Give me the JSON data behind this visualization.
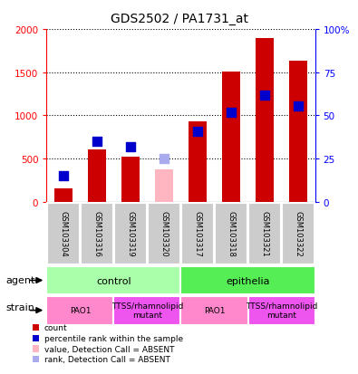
{
  "title": "GDS2502 / PA1731_at",
  "samples": [
    "GSM103304",
    "GSM103316",
    "GSM103319",
    "GSM103320",
    "GSM103317",
    "GSM103318",
    "GSM103321",
    "GSM103322"
  ],
  "count_values": [
    150,
    600,
    520,
    null,
    930,
    1510,
    1900,
    1630
  ],
  "count_absent": [
    null,
    null,
    null,
    370,
    null,
    null,
    null,
    null
  ],
  "percentile_values": [
    300,
    700,
    640,
    null,
    810,
    1030,
    1230,
    1110
  ],
  "percentile_absent": [
    null,
    null,
    null,
    500,
    null,
    null,
    null,
    null
  ],
  "ylim_left": [
    0,
    2000
  ],
  "ylim_right": [
    0,
    100
  ],
  "left_ticks": [
    0,
    500,
    1000,
    1500,
    2000
  ],
  "right_ticks": [
    0,
    25,
    50,
    75,
    100
  ],
  "left_tick_labels": [
    "0",
    "500",
    "1000",
    "1500",
    "2000"
  ],
  "right_tick_labels": [
    "0",
    "25",
    "50",
    "75",
    "100%"
  ],
  "bar_color_red": "#CC0000",
  "bar_color_pink": "#FFB6C1",
  "percentile_color_blue": "#0000CC",
  "percentile_color_lightblue": "#AAAAEE",
  "bar_width": 0.55,
  "dot_size": 50,
  "agent_groups": [
    {
      "label": "control",
      "start": 0,
      "end": 4
    },
    {
      "label": "epithelia",
      "start": 4,
      "end": 8
    }
  ],
  "strain_groups": [
    {
      "label": "PAO1",
      "start": 0,
      "end": 2
    },
    {
      "label": "TTSS/rhamnolipid\nmutant",
      "start": 2,
      "end": 4
    },
    {
      "label": "PAO1",
      "start": 4,
      "end": 6
    },
    {
      "label": "TTSS/rhamnolipid\nmutant",
      "start": 6,
      "end": 8
    }
  ],
  "agent_color_light": "#AAFFAA",
  "agent_color_dark": "#55EE55",
  "strain_color_pao1": "#FF88CC",
  "strain_color_ttss": "#EE55EE",
  "legend_labels": [
    "count",
    "percentile rank within the sample",
    "value, Detection Call = ABSENT",
    "rank, Detection Call = ABSENT"
  ],
  "agent_label": "agent",
  "strain_label": "strain"
}
